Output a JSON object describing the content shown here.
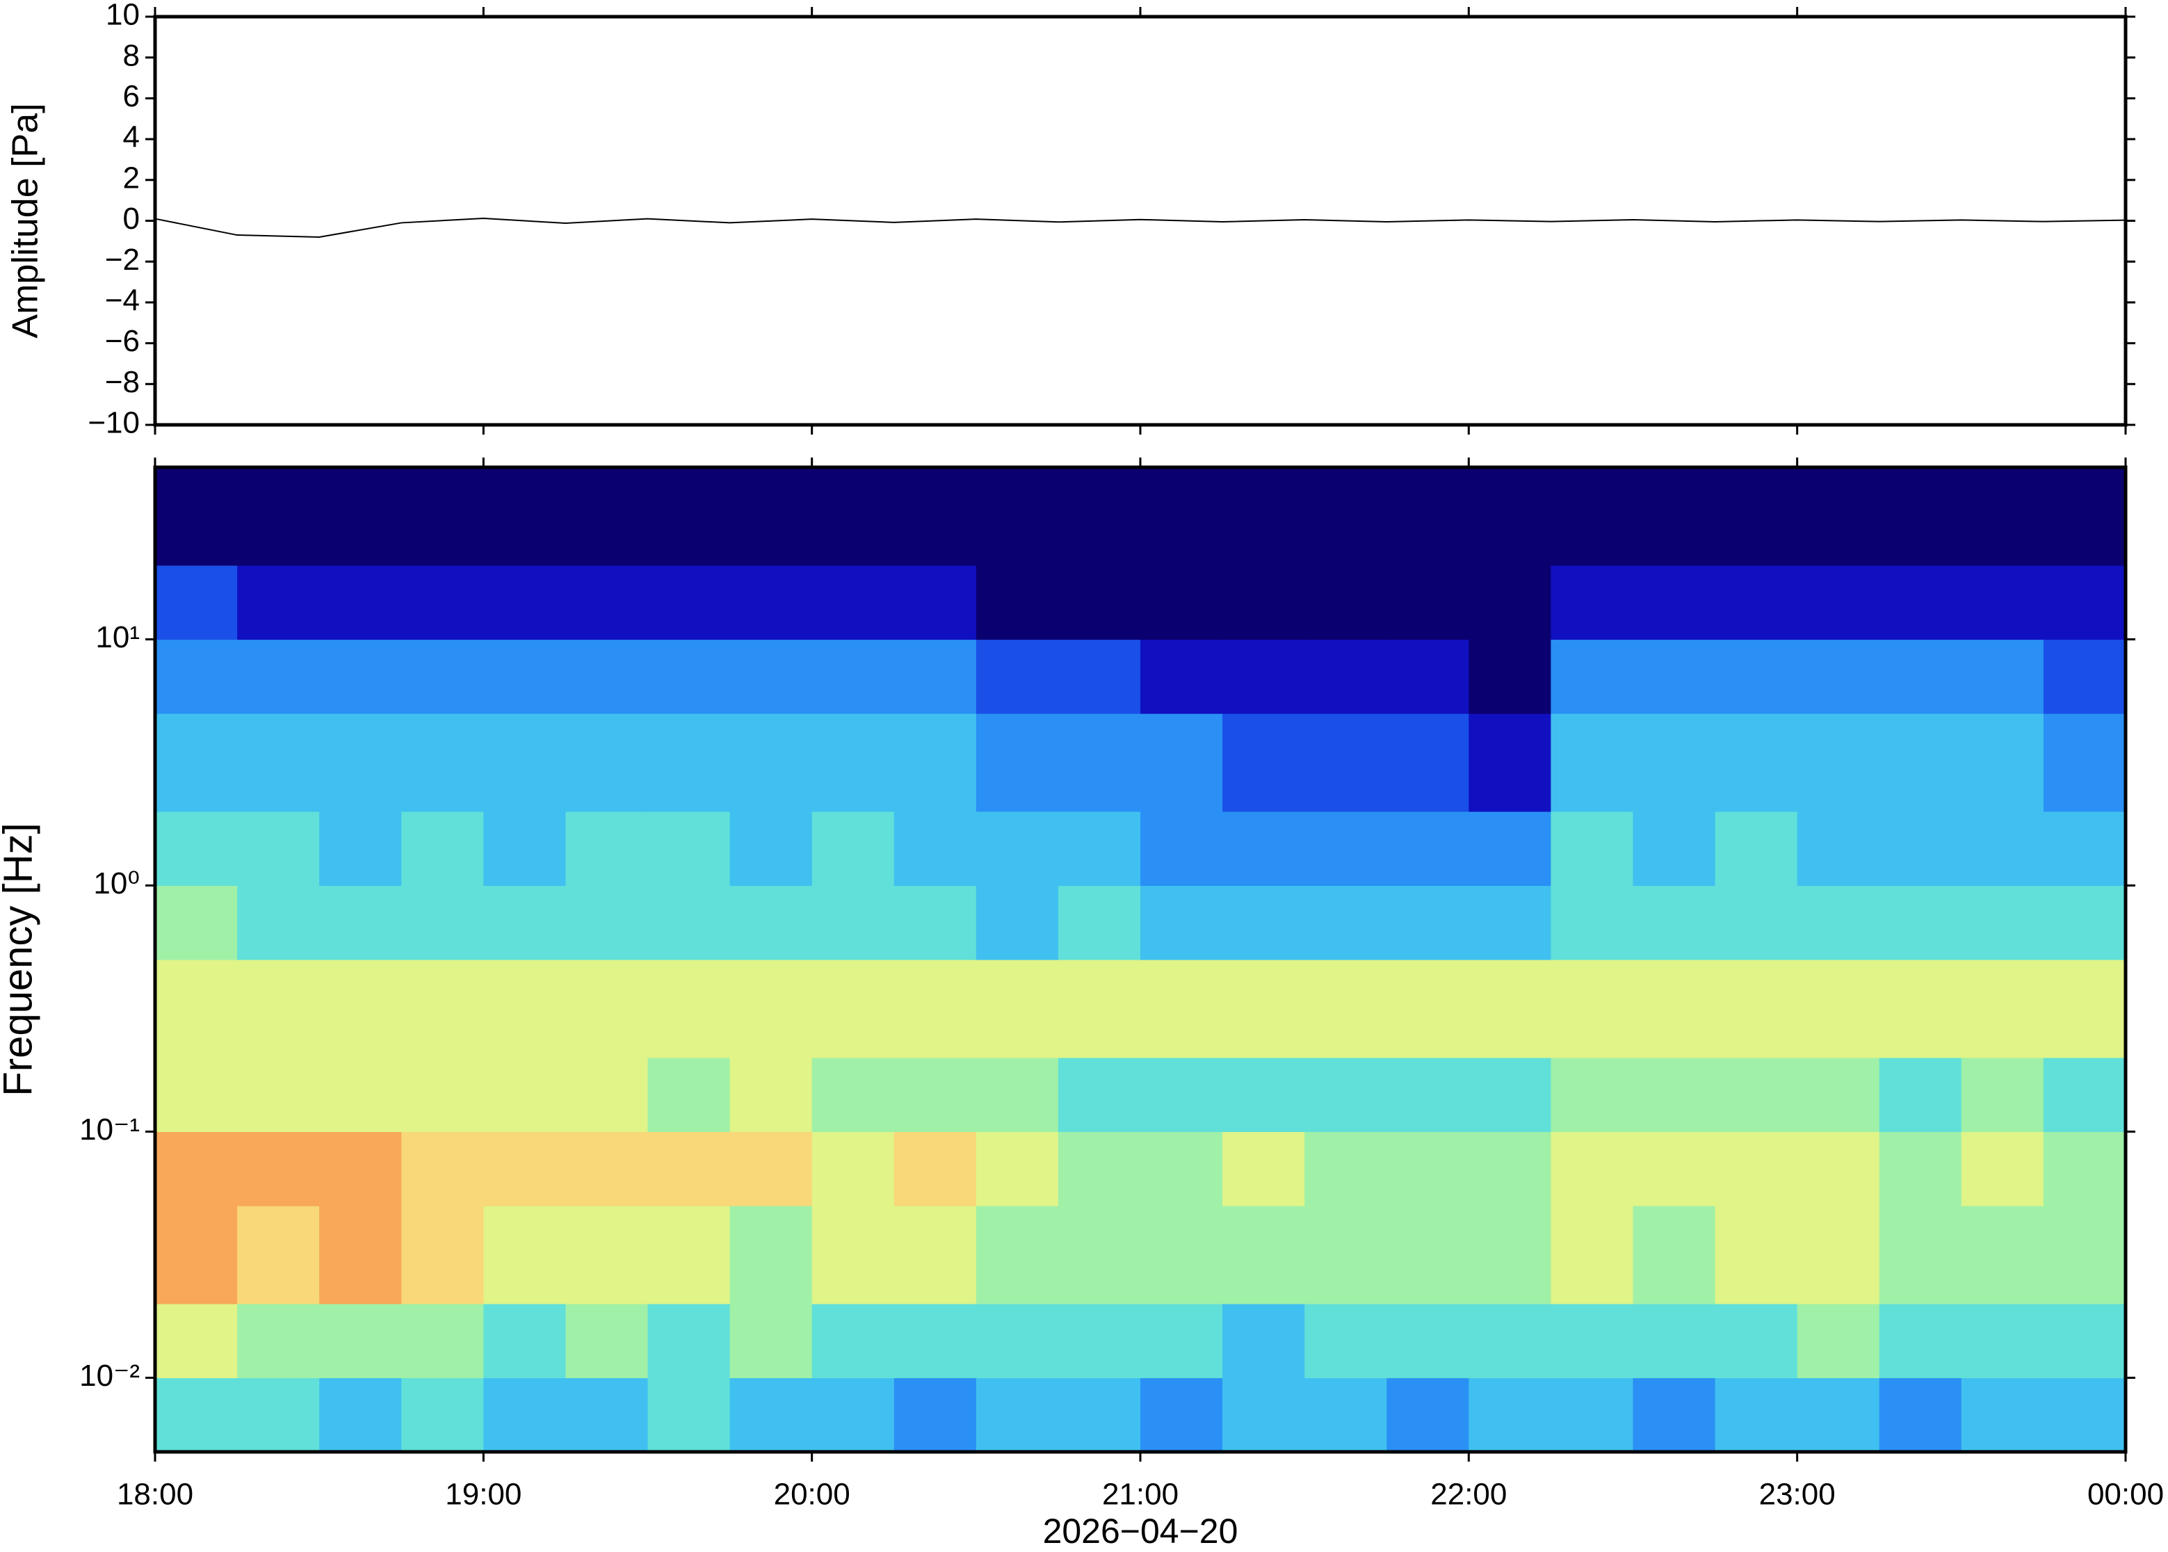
{
  "chart_data": [
    {
      "type": "line",
      "ylabel": "Amplitude [Pa]",
      "color": "#000000",
      "xlim": [
        18,
        24
      ],
      "ylim": [
        -10,
        10
      ],
      "yticks": [
        {
          "value": -10,
          "label": "−10"
        },
        {
          "value": -8,
          "label": "−8"
        },
        {
          "value": -6,
          "label": "−6"
        },
        {
          "value": -4,
          "label": "−4"
        },
        {
          "value": -2,
          "label": "−2"
        },
        0,
        2,
        4,
        6,
        8,
        10
      ],
      "x": [
        18,
        18.25,
        18.5,
        18.75,
        19,
        19.25,
        19.5,
        19.75,
        20,
        20.25,
        20.5,
        20.75,
        21,
        21.25,
        21.5,
        21.75,
        22,
        22.25,
        22.5,
        22.75,
        23,
        23.25,
        23.5,
        23.75,
        24
      ],
      "values": [
        0.1,
        -0.7,
        -0.8,
        -0.1,
        0.12,
        -0.12,
        0.1,
        -0.1,
        0.08,
        -0.08,
        0.08,
        -0.06,
        0.06,
        -0.05,
        0.05,
        -0.05,
        0.04,
        -0.04,
        0.05,
        -0.05,
        0.04,
        -0.04,
        0.04,
        -0.04,
        0.03
      ]
    },
    {
      "type": "heatmap",
      "ylabel": "Frequency [Hz]",
      "xlabel": "2026−04−20",
      "log_y": true,
      "xlim": [
        18,
        24
      ],
      "ylim": [
        0.005,
        50
      ],
      "xticks": [
        {
          "value": 18,
          "label": "18:00"
        },
        {
          "value": 19,
          "label": "19:00"
        },
        {
          "value": 20,
          "label": "20:00"
        },
        {
          "value": 21,
          "label": "21:00"
        },
        {
          "value": 22,
          "label": "22:00"
        },
        {
          "value": 23,
          "label": "23:00"
        },
        {
          "value": 24,
          "label": "00:00"
        }
      ],
      "yticks": [
        {
          "value": 0.01,
          "label": "10⁻²"
        },
        {
          "value": 0.1,
          "label": "10⁻¹"
        },
        {
          "value": 1,
          "label": "10⁰"
        },
        {
          "value": 10,
          "label": "10¹"
        }
      ],
      "zlim": [
        0,
        10
      ],
      "colormap": [
        "#0b0070",
        "#1010c0",
        "#1a50e8",
        "#2a90f5",
        "#40c0f0",
        "#60e0d8",
        "#a0f0a8",
        "#e0f488",
        "#f8d878",
        "#f8a858",
        "#f07840"
      ],
      "x_edges": [
        18,
        18.25,
        18.5,
        18.75,
        19,
        19.25,
        19.5,
        19.75,
        20,
        20.25,
        20.5,
        20.75,
        21,
        21.25,
        21.5,
        21.75,
        22,
        22.25,
        22.5,
        22.75,
        23,
        23.25,
        23.5,
        23.75,
        24
      ],
      "y_edges": [
        0.005,
        0.01,
        0.02,
        0.05,
        0.1,
        0.2,
        0.5,
        1,
        2,
        5,
        10,
        20,
        50
      ],
      "z": [
        [
          5,
          5,
          4,
          5,
          4,
          4,
          5,
          4,
          4,
          3,
          4,
          4,
          3,
          4,
          4,
          3,
          4,
          4,
          3,
          4,
          4,
          3,
          4,
          4
        ],
        [
          7,
          6,
          6,
          6,
          5,
          6,
          5,
          6,
          5,
          5,
          5,
          5,
          5,
          4,
          5,
          5,
          5,
          5,
          5,
          5,
          6,
          5,
          5,
          5
        ],
        [
          9,
          8,
          9,
          8,
          7,
          7,
          7,
          6,
          7,
          7,
          6,
          6,
          6,
          6,
          6,
          6,
          6,
          7,
          6,
          7,
          7,
          6,
          6,
          6
        ],
        [
          9,
          9,
          9,
          8,
          8,
          8,
          8,
          8,
          7,
          8,
          7,
          6,
          6,
          7,
          6,
          6,
          6,
          7,
          7,
          7,
          7,
          6,
          7,
          6
        ],
        [
          7,
          7,
          7,
          7,
          7,
          7,
          6,
          7,
          6,
          6,
          6,
          5,
          5,
          5,
          5,
          5,
          5,
          6,
          6,
          6,
          6,
          5,
          6,
          5
        ],
        [
          7,
          7,
          7,
          7,
          7,
          7,
          7,
          7,
          7,
          7,
          7,
          7,
          7,
          7,
          7,
          7,
          7,
          7,
          7,
          7,
          7,
          7,
          7,
          7
        ],
        [
          6,
          5,
          5,
          5,
          5,
          5,
          5,
          5,
          5,
          5,
          4,
          5,
          4,
          4,
          4,
          4,
          4,
          5,
          5,
          5,
          5,
          5,
          5,
          5
        ],
        [
          5,
          5,
          4,
          5,
          4,
          5,
          5,
          4,
          5,
          4,
          4,
          4,
          3,
          3,
          3,
          3,
          3,
          5,
          4,
          5,
          4,
          4,
          4,
          4
        ],
        [
          4,
          4,
          4,
          4,
          4,
          4,
          4,
          4,
          4,
          4,
          3,
          3,
          3,
          2,
          2,
          2,
          1,
          4,
          4,
          4,
          4,
          4,
          4,
          3
        ],
        [
          3,
          3,
          3,
          3,
          3,
          3,
          3,
          3,
          3,
          3,
          2,
          2,
          1,
          1,
          1,
          1,
          0,
          3,
          3,
          3,
          3,
          3,
          3,
          2
        ],
        [
          2,
          1,
          1,
          1,
          1,
          1,
          1,
          1,
          1,
          1,
          0,
          0,
          0,
          0,
          0,
          0,
          0,
          1,
          1,
          1,
          1,
          1,
          1,
          1
        ],
        [
          0,
          0,
          0,
          0,
          0,
          0,
          0,
          0,
          0,
          0,
          0,
          0,
          0,
          0,
          0,
          0,
          0,
          0,
          0,
          0,
          0,
          0,
          0,
          0
        ]
      ]
    }
  ]
}
